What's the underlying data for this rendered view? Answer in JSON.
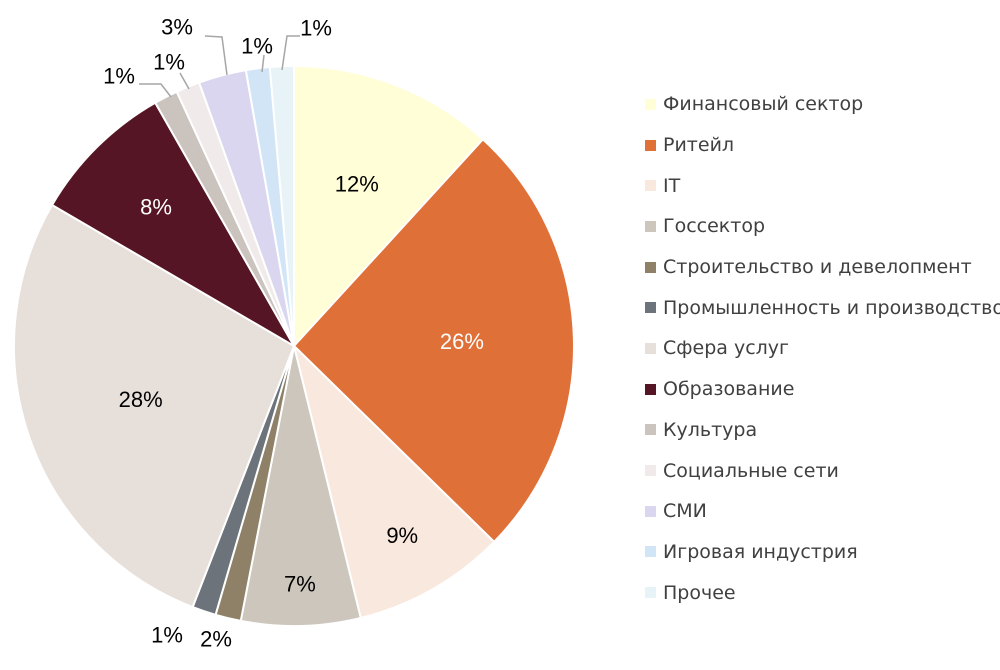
{
  "chart_data": {
    "type": "pie",
    "title": "",
    "start_angle_deg": 0,
    "direction": "clockwise",
    "legend_position": "right",
    "slices": [
      {
        "name": "Финансовый сектор",
        "value": 12,
        "label": "12%",
        "color": "#FFFED6",
        "label_color": "#000000"
      },
      {
        "name": "Ритейл",
        "value": 26,
        "label": "26%",
        "color": "#DF7038",
        "label_color": "#ffffff"
      },
      {
        "name": "IT",
        "value": 9,
        "label": "9%",
        "color": "#F9E8DE",
        "label_color": "#000000"
      },
      {
        "name": "Госсектор",
        "value": 7,
        "label": "7%",
        "color": "#CCC6BD",
        "label_color": "#000000"
      },
      {
        "name": "Строительство и девелопмент",
        "value": 1.5,
        "label": "2%",
        "color": "#8E8167",
        "label_color": "#000000"
      },
      {
        "name": "Промышленность и производство",
        "value": 1.4,
        "label": "1%",
        "color": "#6C737A",
        "label_color": "#000000"
      },
      {
        "name": "Сфера услуг",
        "value": 28,
        "label": "28%",
        "color": "#E7DFDA",
        "label_color": "#000000"
      },
      {
        "name": "Образование",
        "value": 8.5,
        "label": "8%",
        "color": "#561524",
        "label_color": "#ffffff"
      },
      {
        "name": "Культура",
        "value": 1.4,
        "label": "1%",
        "color": "#CBC3BE",
        "label_color": "#000000"
      },
      {
        "name": "Социальные сети",
        "value": 1.4,
        "label": "1%",
        "color": "#F0EBEA",
        "label_color": "#000000"
      },
      {
        "name": "СМИ",
        "value": 2.8,
        "label": "3%",
        "color": "#DAD6EF",
        "label_color": "#000000"
      },
      {
        "name": "Игровая индустрия",
        "value": 1.4,
        "label": "1%",
        "color": "#D2E5F7",
        "label_color": "#000000"
      },
      {
        "name": "Прочее",
        "value": 1.4,
        "label": "1%",
        "color": "#E7F3F7",
        "label_color": "#000000"
      }
    ]
  }
}
